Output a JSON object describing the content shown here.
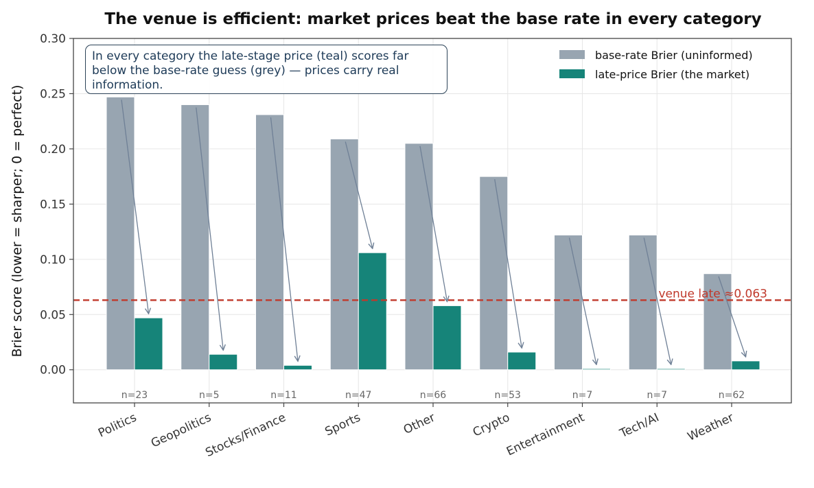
{
  "chart_data": {
    "type": "bar",
    "title": "The venue is efficient: market prices beat the base rate in every category",
    "xlabel": "",
    "ylabel": "Brier score  (lower = sharper; 0 = perfect)",
    "ylim": [
      -0.03,
      0.3
    ],
    "yticks": [
      "0.00",
      "0.05",
      "0.10",
      "0.15",
      "0.20",
      "0.25",
      "0.30"
    ],
    "categories": [
      "Politics",
      "Geopolitics",
      "Stocks/Finance",
      "Sports",
      "Other",
      "Crypto",
      "Entertainment",
      "Tech/AI",
      "Weather"
    ],
    "sample_sizes": [
      "n=23",
      "n=5",
      "n=11",
      "n=47",
      "n=66",
      "n=53",
      "n=7",
      "n=7",
      "n=62"
    ],
    "series": [
      {
        "name": "base-rate Brier (uninformed)",
        "color": "#98a5b1",
        "values": [
          0.247,
          0.24,
          0.231,
          0.209,
          0.205,
          0.175,
          0.122,
          0.122,
          0.087
        ]
      },
      {
        "name": "late-price Brier (the market)",
        "color": "#168479",
        "values": [
          0.047,
          0.014,
          0.004,
          0.106,
          0.058,
          0.016,
          0.001,
          0.001,
          0.008
        ]
      }
    ],
    "reference_line": {
      "value": 0.063,
      "label": "venue late ≈0.063",
      "color": "#c0392b",
      "style": "dashed"
    },
    "annotation": "In every category the late-stage price (teal) scores far below the base-rate guess (grey) — prices carry real information.",
    "legend_position": "top-right",
    "grid": true
  }
}
